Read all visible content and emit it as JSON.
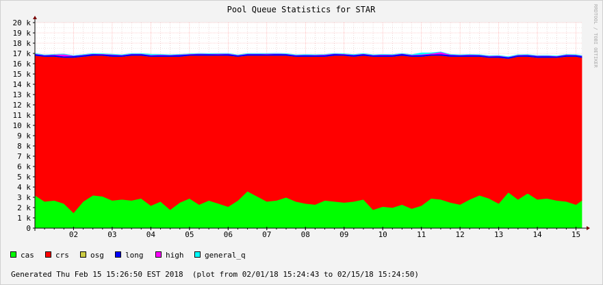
{
  "chart_data": {
    "type": "area",
    "title": "Pool Queue Statistics for STAR",
    "watermark": "RRDTOOL / TOBI OETIKER",
    "footer": "Generated Thu Feb 15 15:26:50 EST 2018  (plot from 02/01/18 15:24:43 to 02/15/18 15:24:50)",
    "stacked": true,
    "grid": true,
    "legend_position": "bottom-left",
    "xlim": [
      1.0,
      15.15
    ],
    "ylim": [
      0,
      20000
    ],
    "x_ticks": [
      2,
      3,
      4,
      5,
      6,
      7,
      8,
      9,
      10,
      11,
      12,
      13,
      14,
      15
    ],
    "x_tick_labels": [
      "02",
      "03",
      "04",
      "05",
      "06",
      "07",
      "08",
      "09",
      "10",
      "11",
      "12",
      "13",
      "14",
      "15"
    ],
    "y_ticks": [
      0,
      1000,
      2000,
      3000,
      4000,
      5000,
      6000,
      7000,
      8000,
      9000,
      10000,
      11000,
      12000,
      13000,
      14000,
      15000,
      16000,
      17000,
      18000,
      19000,
      20000
    ],
    "y_tick_labels": [
      "0",
      "1 k",
      "2 k",
      "3 k",
      "4 k",
      "5 k",
      "6 k",
      "7 k",
      "8 k",
      "9 k",
      "10 k",
      "11 k",
      "12 k",
      "13 k",
      "14 k",
      "15 k",
      "16 k",
      "17 k",
      "18 k",
      "19 k",
      "20 k"
    ],
    "x": [
      1.0,
      1.25,
      1.5,
      1.75,
      2.0,
      2.25,
      2.5,
      2.75,
      3.0,
      3.25,
      3.5,
      3.75,
      4.0,
      4.25,
      4.5,
      4.75,
      5.0,
      5.25,
      5.5,
      5.75,
      6.0,
      6.25,
      6.5,
      6.75,
      7.0,
      7.25,
      7.5,
      7.75,
      8.0,
      8.25,
      8.5,
      8.75,
      9.0,
      9.25,
      9.5,
      9.75,
      10.0,
      10.25,
      10.5,
      10.75,
      11.0,
      11.25,
      11.5,
      11.75,
      12.0,
      12.25,
      12.5,
      12.75,
      13.0,
      13.25,
      13.5,
      13.75,
      14.0,
      14.25,
      14.5,
      14.75,
      15.0,
      15.15
    ],
    "series": [
      {
        "name": "cas",
        "color": "#00ff00",
        "values": [
          3200,
          2600,
          2700,
          2400,
          1500,
          2600,
          3200,
          3100,
          2700,
          2800,
          2700,
          2900,
          2200,
          2600,
          1800,
          2500,
          2900,
          2300,
          2700,
          2400,
          2100,
          2700,
          3600,
          3100,
          2600,
          2700,
          3000,
          2600,
          2400,
          2300,
          2700,
          2600,
          2500,
          2600,
          2800,
          1800,
          2100,
          2000,
          2300,
          1900,
          2200,
          2900,
          2800,
          2500,
          2300,
          2800,
          3200,
          2900,
          2400,
          3500,
          2800,
          3400,
          2800,
          2900,
          2700,
          2600,
          2300,
          2700
        ]
      },
      {
        "name": "crs",
        "color": "#ff0000",
        "values": [
          13600,
          14100,
          14000,
          14200,
          15100,
          14100,
          13600,
          13700,
          14000,
          13900,
          14100,
          13900,
          14500,
          14100,
          14900,
          14200,
          13900,
          14500,
          14100,
          14400,
          14700,
          14000,
          13200,
          13700,
          14200,
          14100,
          13800,
          14100,
          14300,
          14400,
          14000,
          14200,
          14300,
          14100,
          14000,
          14900,
          14600,
          14700,
          14500,
          14800,
          14500,
          13900,
          14000,
          14200,
          14400,
          13900,
          13500,
          13700,
          14200,
          13000,
          13900,
          13300,
          13800,
          13700,
          13900,
          14100,
          14400,
          13900
        ]
      },
      {
        "name": "osg",
        "color": "#cccc44",
        "values": [
          0,
          0,
          0,
          0,
          0,
          0,
          0,
          0,
          0,
          0,
          0,
          0,
          0,
          0,
          0,
          0,
          0,
          0,
          0,
          0,
          0,
          0,
          0,
          0,
          0,
          0,
          0,
          0,
          0,
          0,
          0,
          0,
          0,
          0,
          0,
          0,
          0,
          0,
          0,
          0,
          0,
          0,
          0,
          0,
          0,
          0,
          0,
          0,
          0,
          0,
          0,
          0,
          0,
          0,
          0,
          0,
          0,
          0
        ]
      },
      {
        "name": "long",
        "color": "#0000ff",
        "values": [
          150,
          120,
          150,
          130,
          160,
          140,
          150,
          120,
          160,
          130,
          140,
          150,
          120,
          140,
          130,
          160,
          120,
          150,
          140,
          130,
          150,
          120,
          140,
          150,
          130,
          160,
          140,
          120,
          150,
          130,
          140,
          160,
          120,
          150,
          140,
          130,
          150,
          140,
          160,
          130,
          150,
          120,
          140,
          160,
          130,
          150,
          140,
          120,
          150,
          140,
          130,
          150,
          140,
          160,
          120,
          150,
          140,
          150
        ]
      },
      {
        "name": "high",
        "color": "#ff00ff",
        "values": [
          40,
          30,
          50,
          200,
          30,
          40,
          30,
          40,
          50,
          30,
          40,
          30,
          40,
          50,
          30,
          40,
          30,
          40,
          30,
          50,
          40,
          30,
          40,
          30,
          50,
          40,
          30,
          40,
          30,
          40,
          50,
          30,
          40,
          30,
          40,
          30,
          50,
          40,
          30,
          40,
          60,
          80,
          200,
          40,
          30,
          40,
          30,
          50,
          40,
          30,
          40,
          30,
          50,
          40,
          30,
          40,
          30,
          40
        ]
      },
      {
        "name": "general_q",
        "color": "#00ffff",
        "values": [
          10,
          10,
          10,
          10,
          10,
          10,
          10,
          10,
          10,
          10,
          10,
          10,
          60,
          20,
          10,
          10,
          10,
          10,
          10,
          10,
          10,
          10,
          10,
          10,
          10,
          10,
          10,
          10,
          10,
          10,
          10,
          10,
          10,
          10,
          10,
          10,
          10,
          10,
          10,
          10,
          150,
          60,
          10,
          10,
          10,
          10,
          10,
          10,
          10,
          10,
          10,
          10,
          10,
          10,
          10,
          10,
          10,
          10
        ]
      }
    ]
  }
}
